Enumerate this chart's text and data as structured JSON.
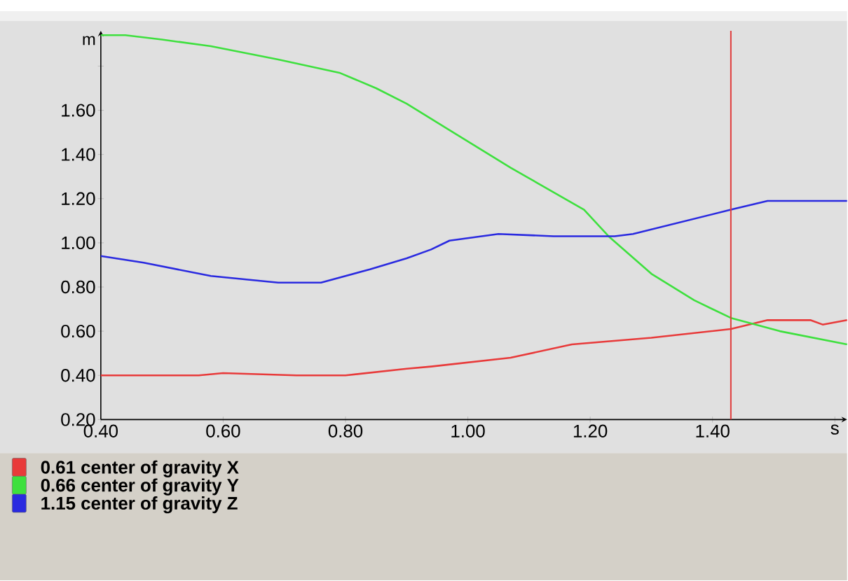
{
  "chart_data": {
    "type": "line",
    "ylabel": "m",
    "xlim": [
      0.4,
      1.62
    ],
    "ylim": [
      0.2,
      1.96
    ],
    "xticks": [
      {
        "value": 0.4,
        "label": "0.40"
      },
      {
        "value": 0.6,
        "label": "0.60"
      },
      {
        "value": 0.8,
        "label": "0.80"
      },
      {
        "value": 1.0,
        "label": "1.00"
      },
      {
        "value": 1.2,
        "label": "1.20"
      },
      {
        "value": 1.4,
        "label": "1.40"
      },
      {
        "value": 1.6,
        "label": "s"
      }
    ],
    "yticks": [
      {
        "value": 0.2,
        "label": "0.20"
      },
      {
        "value": 0.4,
        "label": "0.40"
      },
      {
        "value": 0.6,
        "label": "0.60"
      },
      {
        "value": 0.8,
        "label": "0.80"
      },
      {
        "value": 1.0,
        "label": "1.00"
      },
      {
        "value": 1.2,
        "label": "1.20"
      },
      {
        "value": 1.4,
        "label": "1.40"
      },
      {
        "value": 1.6,
        "label": "1.60"
      },
      {
        "value": 1.8,
        "label": null
      }
    ],
    "grid": false,
    "legend": "bottom",
    "marker": "none",
    "line_style": "solid",
    "ref_lines": [
      {
        "axis": "x",
        "value": 1.43,
        "color": "#e03c3c"
      }
    ],
    "series": [
      {
        "name": "0.61 center of gravity X",
        "color": "#e83a3a",
        "x": [
          0.4,
          0.56,
          0.6,
          0.72,
          0.8,
          0.9,
          0.94,
          1.07,
          1.17,
          1.3,
          1.43,
          1.49,
          1.56,
          1.58,
          1.62
        ],
        "values": [
          0.4,
          0.4,
          0.41,
          0.4,
          0.4,
          0.43,
          0.44,
          0.48,
          0.54,
          0.57,
          0.61,
          0.65,
          0.65,
          0.63,
          0.65
        ]
      },
      {
        "name": "0.66 center of gravity Y",
        "color": "#3ee03e",
        "x": [
          0.4,
          0.44,
          0.5,
          0.58,
          0.69,
          0.79,
          0.85,
          0.9,
          0.97,
          1.07,
          1.19,
          1.23,
          1.3,
          1.37,
          1.43,
          1.51,
          1.62
        ],
        "values": [
          1.94,
          1.94,
          1.92,
          1.89,
          1.83,
          1.77,
          1.7,
          1.63,
          1.51,
          1.34,
          1.15,
          1.03,
          0.86,
          0.74,
          0.66,
          0.6,
          0.54
        ]
      },
      {
        "name": "1.15 center of gravity Z",
        "color": "#2a2ae0",
        "x": [
          0.4,
          0.47,
          0.58,
          0.69,
          0.76,
          0.84,
          0.9,
          0.94,
          0.97,
          1.05,
          1.14,
          1.24,
          1.27,
          1.43,
          1.49,
          1.62
        ],
        "values": [
          0.94,
          0.91,
          0.85,
          0.82,
          0.82,
          0.88,
          0.93,
          0.97,
          1.01,
          1.04,
          1.03,
          1.03,
          1.04,
          1.15,
          1.19,
          1.19
        ]
      }
    ]
  }
}
